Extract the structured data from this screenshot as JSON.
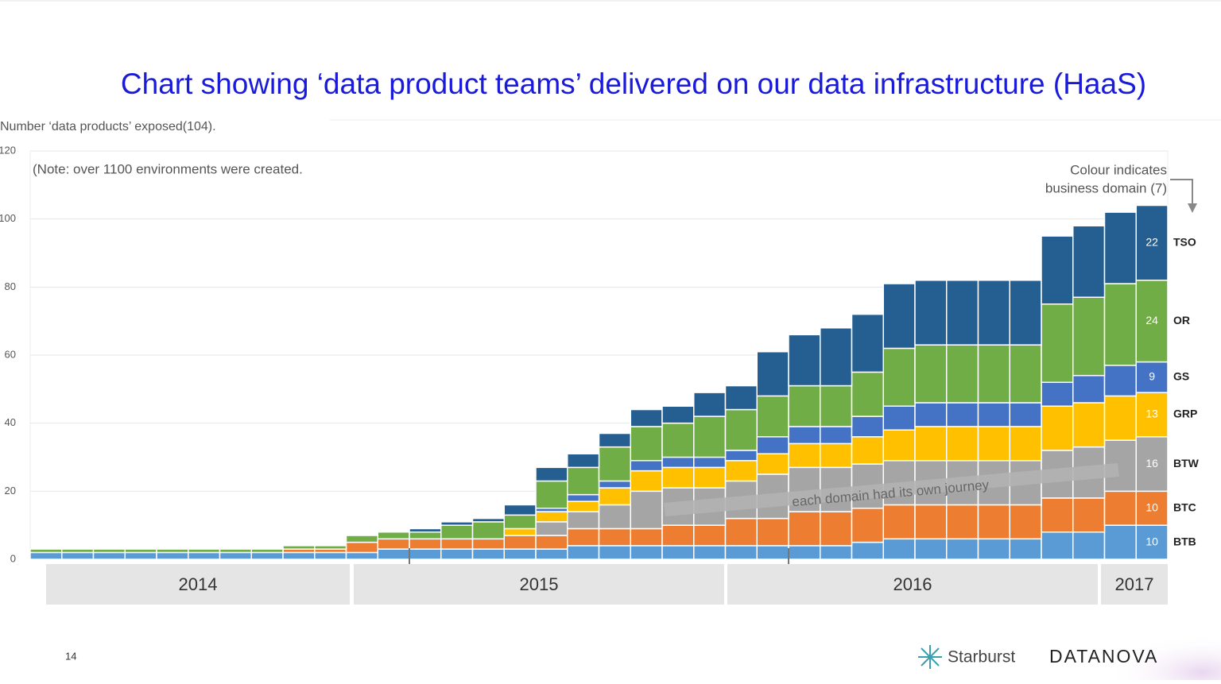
{
  "chart_data": {
    "type": "stacked-bar",
    "title": "Chart showing ‘data product teams’ delivered on our data infrastructure (HaaS)",
    "y_label": "Number ‘data products’ exposed(104).",
    "note": "(Note: over 1100 environments were created.",
    "legend_note": [
      "Colour indicates",
      "business domain (7)"
    ],
    "annotation": "each domain had its own journey",
    "ylim": [
      0,
      120
    ],
    "yticks": [
      0,
      20,
      40,
      60,
      80,
      100,
      120
    ],
    "grid": true,
    "categories": [
      null,
      null,
      null,
      null,
      null,
      null,
      null,
      null,
      null,
      null,
      null,
      null,
      null,
      null,
      null,
      null,
      null,
      null,
      null,
      null,
      null,
      null,
      null,
      null,
      null,
      null,
      null,
      null,
      null,
      null,
      null,
      null,
      null,
      null,
      null,
      null
    ],
    "x_groups": [
      "2014",
      "2015",
      "2016",
      "2017"
    ],
    "series": [
      {
        "name": "BTB",
        "color": "#5b9bd5",
        "values": [
          2,
          2,
          2,
          2,
          2,
          2,
          2,
          2,
          2,
          2,
          2,
          3,
          3,
          3,
          3,
          3,
          3,
          4,
          4,
          4,
          4,
          4,
          4,
          4,
          4,
          4,
          5,
          6,
          6,
          6,
          6,
          6,
          8,
          8,
          10,
          10
        ]
      },
      {
        "name": "BTC",
        "color": "#ed7d31",
        "values": [
          0,
          0,
          0,
          0,
          0,
          0,
          0,
          0,
          1,
          1,
          3,
          3,
          3,
          3,
          3,
          4,
          4,
          5,
          5,
          5,
          6,
          6,
          8,
          8,
          10,
          10,
          10,
          10,
          10,
          10,
          10,
          10,
          10,
          10,
          10,
          10
        ]
      },
      {
        "name": "BTW",
        "color": "#a5a5a5",
        "values": [
          0,
          0,
          0,
          0,
          0,
          0,
          0,
          0,
          0,
          0,
          0,
          0,
          0,
          0,
          0,
          0,
          4,
          5,
          7,
          11,
          11,
          11,
          11,
          13,
          13,
          13,
          13,
          13,
          13,
          13,
          13,
          13,
          14,
          15,
          15,
          16
        ]
      },
      {
        "name": "GRP",
        "color": "#ffc000",
        "values": [
          0,
          0,
          0,
          0,
          0,
          0,
          0,
          0,
          0,
          0,
          0,
          0,
          0,
          0,
          0,
          2,
          3,
          3,
          5,
          6,
          6,
          6,
          6,
          6,
          7,
          7,
          8,
          9,
          10,
          10,
          10,
          10,
          13,
          13,
          13,
          13
        ]
      },
      {
        "name": "GS",
        "color": "#4472c4",
        "values": [
          0,
          0,
          0,
          0,
          0,
          0,
          0,
          0,
          0,
          0,
          0,
          0,
          0,
          0,
          0,
          0,
          1,
          2,
          2,
          3,
          3,
          3,
          3,
          5,
          5,
          5,
          6,
          7,
          7,
          7,
          7,
          7,
          7,
          8,
          9,
          9
        ]
      },
      {
        "name": "OR",
        "color": "#70ad47",
        "values": [
          1,
          1,
          1,
          1,
          1,
          1,
          1,
          1,
          1,
          1,
          2,
          2,
          2,
          4,
          5,
          4,
          8,
          8,
          10,
          10,
          10,
          12,
          12,
          12,
          12,
          12,
          13,
          17,
          17,
          17,
          17,
          17,
          23,
          23,
          24,
          24
        ]
      },
      {
        "name": "TSO",
        "color": "#255e91",
        "values": [
          0,
          0,
          0,
          0,
          0,
          0,
          0,
          0,
          0,
          0,
          0,
          0,
          1,
          1,
          1,
          3,
          4,
          4,
          4,
          5,
          5,
          7,
          7,
          13,
          15,
          17,
          17,
          19,
          19,
          19,
          19,
          19,
          20,
          21,
          21,
          22
        ]
      }
    ]
  },
  "footer": {
    "page_number": "14",
    "logos": [
      "Starburst",
      "DATANOVA"
    ]
  }
}
